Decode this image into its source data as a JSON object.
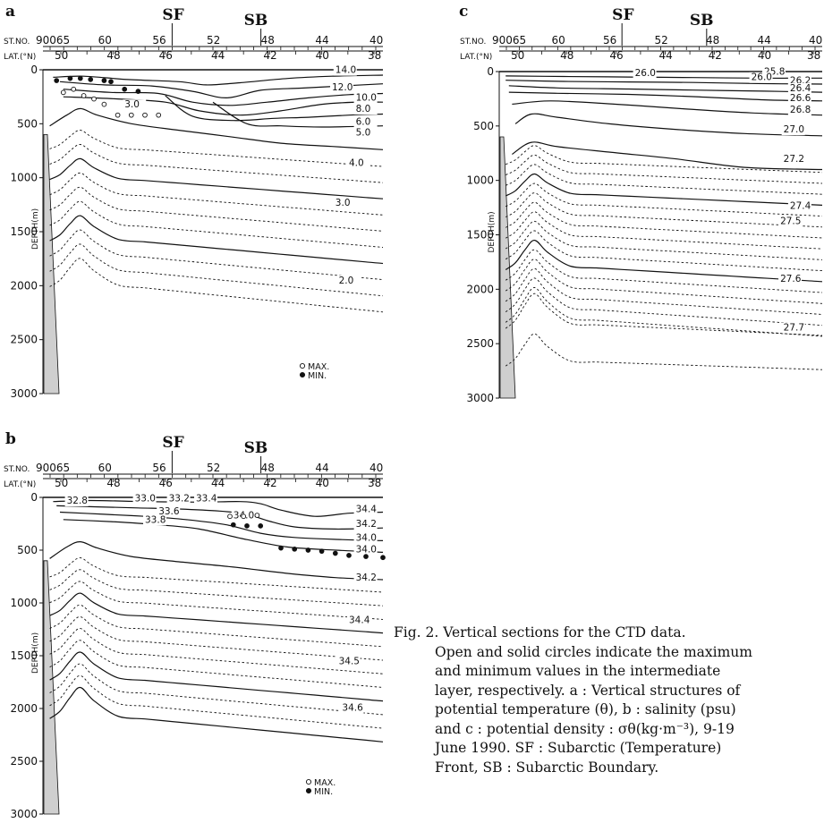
{
  "figure": {
    "axis_labels": {
      "station": "ST.NO.",
      "latitude": "LAT.(°N)",
      "depth": "DEPTH(m)"
    },
    "front_labels": {
      "sf": "SF",
      "sb": "SB"
    },
    "stations": [
      "90065",
      "60",
      "56",
      "52",
      "48",
      "44",
      "40"
    ],
    "latitudes": [
      "50",
      "48",
      "46",
      "44",
      "42",
      "40",
      "38"
    ],
    "depth_ticks": [
      "0",
      "500",
      "1000",
      "1500",
      "2000",
      "2500",
      "3000"
    ],
    "legend": {
      "max": "MAX.",
      "min": "MIN."
    },
    "panels": {
      "a": {
        "letter": "a",
        "contour_labels": [
          "14.0",
          "12.0",
          "10.0",
          "8.0",
          "6.0",
          "5.0",
          "4.0",
          "3.0",
          "2.0",
          "3.0"
        ]
      },
      "b": {
        "letter": "b",
        "contour_labels": [
          "32.8",
          "33.0",
          "33.2",
          "33.4",
          "33.6",
          "33.8",
          "34.0",
          "34.4",
          "34.2",
          "34.0",
          "34.0",
          "34.2",
          "34.4",
          "34.5",
          "34.6"
        ]
      },
      "c": {
        "letter": "c",
        "contour_labels": [
          "26.0",
          "25.8",
          "26.0",
          "26.2",
          "26.4",
          "26.6",
          "26.8",
          "27.0",
          "27.2",
          "27.4",
          "27.5",
          "27.6",
          "27.7"
        ]
      }
    },
    "caption": {
      "lines": [
        "Fig. 2.  Vertical  sections  for  the  CTD  data.",
        "Open and solid circles indicate the maximum",
        "and  minimum  values  in  the  intermediate",
        "layer, respectively.   a : Vertical structures of",
        "potential temperature (θ), b : salinity (psu)",
        "and c : potential density : σθ(kg·m⁻³), 9-19",
        "June  1990.   SF : Subarctic  (Temperature)",
        "Front, SB : Subarctic Boundary."
      ]
    }
  }
}
